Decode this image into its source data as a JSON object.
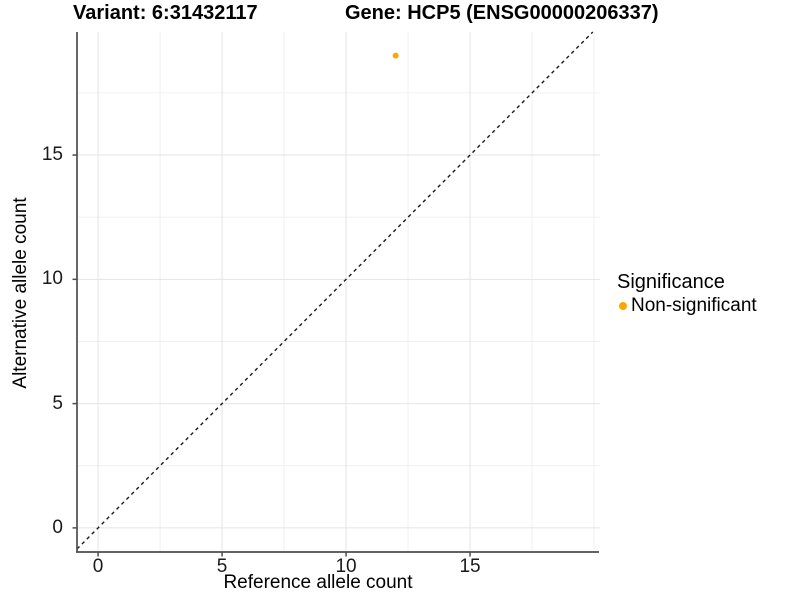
{
  "chart_data": {
    "type": "scatter",
    "titles": [
      "Variant: 6:31432117",
      "Gene: HCP5 (ENSG00000206337)"
    ],
    "xlabel": "Reference allele count",
    "ylabel": "Alternative allele count",
    "xlim": [
      -0.85,
      20.24
    ],
    "ylim": [
      -0.97,
      19.95
    ],
    "x_ticks": [
      0,
      5,
      10,
      15
    ],
    "y_ticks": [
      0,
      5,
      10,
      15
    ],
    "x_minor_gridlines": [
      2.5,
      7.5,
      12.5,
      17.5,
      20
    ],
    "y_minor_gridlines": [
      2.5,
      7.5,
      12.5,
      17.5
    ],
    "grid": true,
    "legend": {
      "title": "Significance",
      "position": "right"
    },
    "series": [
      {
        "name": "Non-significant",
        "color": "#FFA500",
        "points": [
          {
            "x": 12,
            "y": 19
          }
        ]
      }
    ],
    "identity_line": {
      "style": "dashed",
      "slope": 1,
      "intercept": 0,
      "color": "#1A1A1A"
    }
  },
  "colors": {
    "background": "#FFFFFF",
    "axis_line": "#4D4D4D",
    "grid_major": "#E4E4E4",
    "grid_minor": "#F0F0F0",
    "tick_text": "#1A1A1A",
    "title_text": "#000000"
  }
}
